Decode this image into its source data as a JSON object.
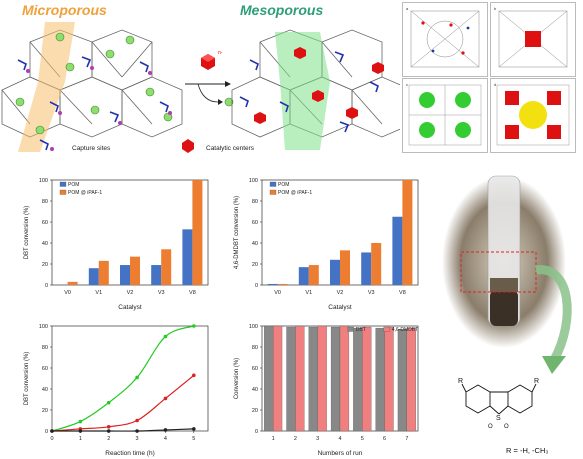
{
  "scheme": {
    "left_title": "Microporous",
    "right_title": "Mesoporous",
    "left_title_color": "#f0a03c",
    "right_title_color": "#2e9e7a",
    "legend_capture": "Capture sites",
    "legend_catalytic": "Catalytic centers",
    "capture_color": "#2233aa",
    "catalytic_color": "#dd1111",
    "cl_symbol": "Cl",
    "charge_label": "n-"
  },
  "panels": [
    {
      "name": "panel-a",
      "tag": "a"
    },
    {
      "name": "panel-b",
      "tag": "b"
    },
    {
      "name": "panel-c",
      "tag": "c"
    },
    {
      "name": "panel-d",
      "tag": "d"
    }
  ],
  "chart_data": [
    {
      "type": "bar",
      "categories": [
        "V0",
        "V1",
        "V2",
        "V3",
        "V8"
      ],
      "series": [
        {
          "name": "POM",
          "values": [
            0,
            16,
            19,
            19,
            53
          ],
          "color": "#4472c4"
        },
        {
          "name": "POM @ iPAF-1",
          "values": [
            3,
            23,
            27,
            34,
            100
          ],
          "color": "#ed7d31"
        }
      ],
      "xlabel": "Catalyst",
      "ylabel": "DBT conversion (%)",
      "ylim": [
        0,
        100
      ],
      "yticks": [
        0,
        20,
        40,
        60,
        80,
        100
      ],
      "legend": "top-left"
    },
    {
      "type": "bar",
      "categories": [
        "V0",
        "V1",
        "V2",
        "V3",
        "V8"
      ],
      "series": [
        {
          "name": "POM",
          "values": [
            1,
            17,
            24,
            31,
            65
          ],
          "color": "#4472c4"
        },
        {
          "name": "POM @ iPAF-1",
          "values": [
            1,
            19,
            33,
            40,
            100
          ],
          "color": "#ed7d31"
        }
      ],
      "xlabel": "Catalyst",
      "ylabel": "4,6-DMDBT conversion (%)",
      "ylim": [
        0,
        100
      ],
      "yticks": [
        0,
        20,
        40,
        60,
        80,
        100
      ],
      "legend": "top-left"
    },
    {
      "type": "line",
      "x": [
        0,
        1,
        2,
        3,
        4,
        5
      ],
      "series": [
        {
          "values": [
            0,
            9,
            27,
            51,
            90,
            100
          ],
          "color": "#22cc22"
        },
        {
          "values": [
            0,
            2,
            4,
            10,
            31,
            53
          ],
          "color": "#dd2222"
        },
        {
          "values": [
            0,
            0,
            0,
            0,
            1,
            2
          ],
          "color": "#222222"
        }
      ],
      "xlabel": "Reaction time (h)",
      "ylabel": "DBT conversion (%)",
      "xlim": [
        0,
        5.5
      ],
      "ylim": [
        0,
        100
      ],
      "xticks": [
        0,
        1,
        2,
        3,
        4,
        5
      ],
      "yticks": [
        0,
        20,
        40,
        60,
        80,
        100
      ]
    },
    {
      "type": "bar",
      "categories": [
        "1",
        "2",
        "3",
        "4",
        "5",
        "6",
        "7"
      ],
      "series": [
        {
          "name": "DBT",
          "values": [
            100,
            99,
            99,
            99,
            98,
            98,
            97
          ],
          "color": "#888888"
        },
        {
          "name": "4,6-DMDBT",
          "values": [
            100,
            100,
            100,
            100,
            99,
            99,
            98
          ],
          "color": "#f08080"
        }
      ],
      "xlabel": "Numbers of run",
      "ylabel": "Conversion (%)",
      "ylim": [
        0,
        100
      ],
      "yticks": [
        0,
        20,
        40,
        60,
        80,
        100
      ],
      "legend": "top-right"
    }
  ],
  "product": {
    "r_label": "R",
    "s_label": "S",
    "o_label": "O",
    "caption": "R = -H, -CH₃"
  }
}
